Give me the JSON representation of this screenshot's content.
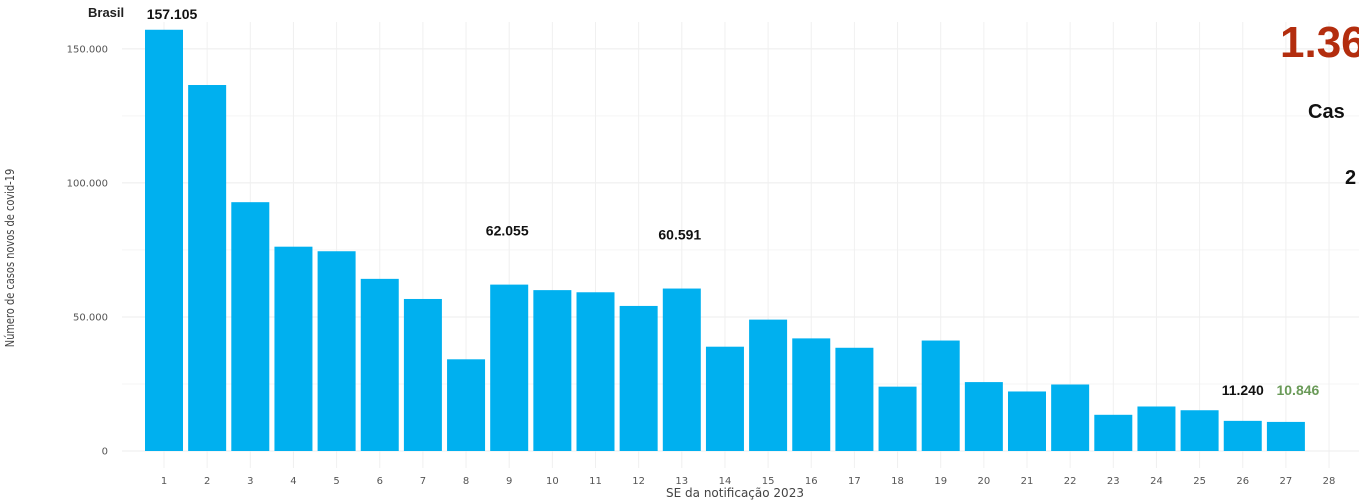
{
  "chart_data": {
    "type": "bar",
    "title": "Brasil",
    "xlabel": "SE da notificação 2023",
    "ylabel": "Número de casos novos de covid-19",
    "ylim": [
      0,
      160000
    ],
    "yticks": [
      0,
      50000,
      100000,
      150000
    ],
    "ytick_labels": [
      "0",
      "50.000",
      "100.000",
      "150.000"
    ],
    "categories": [
      "1",
      "2",
      "3",
      "4",
      "5",
      "6",
      "7",
      "8",
      "9",
      "10",
      "11",
      "12",
      "13",
      "14",
      "15",
      "16",
      "17",
      "18",
      "19",
      "20",
      "21",
      "22",
      "23",
      "24",
      "25",
      "26",
      "27",
      "28"
    ],
    "values": [
      157105,
      136500,
      92800,
      76200,
      74500,
      64200,
      56700,
      34200,
      62055,
      60000,
      59200,
      54100,
      60591,
      38900,
      49000,
      42000,
      38500,
      24000,
      41200,
      25700,
      22200,
      24800,
      13500,
      16600,
      15200,
      11240,
      10846,
      null
    ],
    "bar_color": "#00b0ef",
    "grid": true,
    "data_labels": [
      {
        "index": 0,
        "text": "157.105",
        "color": "#111111"
      },
      {
        "index": 8,
        "text": "62.055",
        "color": "#111111"
      },
      {
        "index": 12,
        "text": "60.591",
        "color": "#111111"
      },
      {
        "index": 25,
        "text": "11.240",
        "color": "#111111"
      },
      {
        "index": 26,
        "text": "10.846",
        "color": "#6a9a58"
      }
    ]
  },
  "side_panel": {
    "big_number": "1.36",
    "big_color": "#b32d0e",
    "line2": "Cas",
    "line3": "2"
  }
}
